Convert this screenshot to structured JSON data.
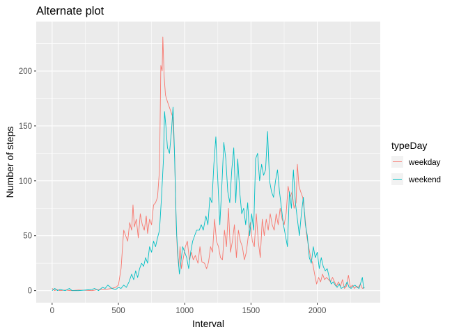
{
  "chart_data": {
    "type": "line",
    "title": "Alternate plot",
    "xlabel": "Interval",
    "ylabel": "Number of steps",
    "xlim": [
      -120,
      2475
    ],
    "ylim": [
      -11,
      245
    ],
    "x_ticks": [
      0,
      500,
      1000,
      1500,
      2000
    ],
    "x_tick_labels": [
      "0",
      "500",
      "1000",
      "1500",
      "2000"
    ],
    "y_ticks": [
      0,
      50,
      100,
      150,
      200
    ],
    "y_tick_labels": [
      "0",
      "50",
      "100",
      "150",
      "200"
    ],
    "grid": true,
    "legend": {
      "title": "typeDay",
      "position": "right"
    },
    "series": [
      {
        "name": "weekday",
        "color": "#F8766D",
        "points": [
          [
            0,
            2
          ],
          [
            20,
            0
          ],
          [
            35,
            1
          ],
          [
            60,
            0
          ],
          [
            100,
            0.5
          ],
          [
            140,
            0
          ],
          [
            200,
            0.5
          ],
          [
            300,
            0
          ],
          [
            350,
            1
          ],
          [
            400,
            1
          ],
          [
            450,
            2
          ],
          [
            480,
            3
          ],
          [
            500,
            5
          ],
          [
            520,
            20
          ],
          [
            540,
            55
          ],
          [
            555,
            50
          ],
          [
            570,
            45
          ],
          [
            585,
            62
          ],
          [
            600,
            55
          ],
          [
            610,
            78
          ],
          [
            620,
            58
          ],
          [
            635,
            65
          ],
          [
            650,
            48
          ],
          [
            665,
            70
          ],
          [
            680,
            60
          ],
          [
            695,
            55
          ],
          [
            710,
            68
          ],
          [
            720,
            52
          ],
          [
            735,
            65
          ],
          [
            750,
            60
          ],
          [
            765,
            78
          ],
          [
            780,
            80
          ],
          [
            795,
            85
          ],
          [
            810,
            110
          ],
          [
            820,
            205
          ],
          [
            830,
            200
          ],
          [
            835,
            231
          ],
          [
            845,
            195
          ],
          [
            855,
            178
          ],
          [
            870,
            172
          ],
          [
            890,
            165
          ],
          [
            910,
            158
          ],
          [
            925,
            120
          ],
          [
            935,
            62
          ],
          [
            945,
            35
          ],
          [
            955,
            22
          ],
          [
            965,
            40
          ],
          [
            975,
            20
          ],
          [
            990,
            30
          ],
          [
            1005,
            40
          ],
          [
            1020,
            45
          ],
          [
            1035,
            28
          ],
          [
            1050,
            35
          ],
          [
            1065,
            28
          ],
          [
            1080,
            32
          ],
          [
            1100,
            25
          ],
          [
            1115,
            40
          ],
          [
            1130,
            26
          ],
          [
            1150,
            25
          ],
          [
            1165,
            20
          ],
          [
            1180,
            26
          ],
          [
            1195,
            40
          ],
          [
            1210,
            35
          ],
          [
            1225,
            65
          ],
          [
            1240,
            45
          ],
          [
            1255,
            40
          ],
          [
            1270,
            30
          ],
          [
            1285,
            28
          ],
          [
            1300,
            55
          ],
          [
            1315,
            40
          ],
          [
            1330,
            75
          ],
          [
            1345,
            35
          ],
          [
            1360,
            45
          ],
          [
            1375,
            60
          ],
          [
            1390,
            30
          ],
          [
            1405,
            55
          ],
          [
            1420,
            45
          ],
          [
            1435,
            40
          ],
          [
            1450,
            28
          ],
          [
            1465,
            35
          ],
          [
            1480,
            50
          ],
          [
            1495,
            62
          ],
          [
            1510,
            45
          ],
          [
            1525,
            40
          ],
          [
            1540,
            70
          ],
          [
            1555,
            45
          ],
          [
            1570,
            30
          ],
          [
            1585,
            65
          ],
          [
            1600,
            50
          ],
          [
            1615,
            65
          ],
          [
            1630,
            55
          ],
          [
            1645,
            70
          ],
          [
            1660,
            60
          ],
          [
            1675,
            55
          ],
          [
            1690,
            70
          ],
          [
            1705,
            60
          ],
          [
            1720,
            75
          ],
          [
            1735,
            65
          ],
          [
            1750,
            60
          ],
          [
            1765,
            70
          ],
          [
            1780,
            95
          ],
          [
            1795,
            85
          ],
          [
            1810,
            90
          ],
          [
            1825,
            75
          ],
          [
            1840,
            80
          ],
          [
            1850,
            115
          ],
          [
            1862,
            95
          ],
          [
            1875,
            90
          ],
          [
            1890,
            85
          ],
          [
            1905,
            70
          ],
          [
            1920,
            50
          ],
          [
            1935,
            40
          ],
          [
            1950,
            30
          ],
          [
            1965,
            25
          ],
          [
            1980,
            15
          ],
          [
            1995,
            6
          ],
          [
            2010,
            12
          ],
          [
            2025,
            8
          ],
          [
            2040,
            15
          ],
          [
            2055,
            10
          ],
          [
            2070,
            12
          ],
          [
            2085,
            10
          ],
          [
            2100,
            8
          ],
          [
            2115,
            12
          ],
          [
            2130,
            8
          ],
          [
            2145,
            4
          ],
          [
            2160,
            8
          ],
          [
            2175,
            4
          ],
          [
            2190,
            10
          ],
          [
            2205,
            2
          ],
          [
            2220,
            4
          ],
          [
            2235,
            14
          ],
          [
            2250,
            3
          ],
          [
            2265,
            5
          ],
          [
            2280,
            2
          ],
          [
            2295,
            4
          ],
          [
            2310,
            3
          ],
          [
            2325,
            6
          ],
          [
            2340,
            2
          ],
          [
            2355,
            3
          ]
        ]
      },
      {
        "name": "weekend",
        "color": "#00BFC4",
        "points": [
          [
            0,
            0
          ],
          [
            20,
            2
          ],
          [
            40,
            0
          ],
          [
            60,
            1
          ],
          [
            100,
            0
          ],
          [
            130,
            2
          ],
          [
            150,
            0
          ],
          [
            200,
            0
          ],
          [
            300,
            1
          ],
          [
            320,
            2
          ],
          [
            350,
            0
          ],
          [
            380,
            3
          ],
          [
            400,
            2
          ],
          [
            420,
            5
          ],
          [
            450,
            2
          ],
          [
            480,
            1
          ],
          [
            500,
            3
          ],
          [
            520,
            2
          ],
          [
            540,
            5
          ],
          [
            560,
            3
          ],
          [
            580,
            8
          ],
          [
            600,
            15
          ],
          [
            615,
            10
          ],
          [
            630,
            18
          ],
          [
            645,
            12
          ],
          [
            660,
            20
          ],
          [
            675,
            25
          ],
          [
            690,
            22
          ],
          [
            705,
            30
          ],
          [
            720,
            25
          ],
          [
            735,
            40
          ],
          [
            750,
            35
          ],
          [
            765,
            45
          ],
          [
            780,
            40
          ],
          [
            795,
            48
          ],
          [
            810,
            55
          ],
          [
            825,
            85
          ],
          [
            840,
            120
          ],
          [
            848,
            163
          ],
          [
            858,
            150
          ],
          [
            870,
            130
          ],
          [
            885,
            125
          ],
          [
            900,
            145
          ],
          [
            912,
            167
          ],
          [
            922,
            130
          ],
          [
            932,
            80
          ],
          [
            940,
            50
          ],
          [
            950,
            30
          ],
          [
            960,
            15
          ],
          [
            970,
            25
          ],
          [
            985,
            40
          ],
          [
            1000,
            35
          ],
          [
            1015,
            30
          ],
          [
            1030,
            20
          ],
          [
            1045,
            35
          ],
          [
            1060,
            45
          ],
          [
            1075,
            50
          ],
          [
            1090,
            55
          ],
          [
            1110,
            55
          ],
          [
            1125,
            60
          ],
          [
            1140,
            55
          ],
          [
            1160,
            68
          ],
          [
            1175,
            60
          ],
          [
            1190,
            85
          ],
          [
            1205,
            80
          ],
          [
            1220,
            115
          ],
          [
            1235,
            140
          ],
          [
            1250,
            100
          ],
          [
            1265,
            60
          ],
          [
            1280,
            95
          ],
          [
            1295,
            135
          ],
          [
            1310,
            120
          ],
          [
            1325,
            90
          ],
          [
            1340,
            80
          ],
          [
            1355,
            110
          ],
          [
            1370,
            130
          ],
          [
            1385,
            80
          ],
          [
            1400,
            120
          ],
          [
            1415,
            90
          ],
          [
            1430,
            70
          ],
          [
            1445,
            75
          ],
          [
            1460,
            60
          ],
          [
            1475,
            80
          ],
          [
            1490,
            50
          ],
          [
            1505,
            70
          ],
          [
            1520,
            55
          ],
          [
            1535,
            120
          ],
          [
            1550,
            125
          ],
          [
            1565,
            100
          ],
          [
            1580,
            115
          ],
          [
            1595,
            105
          ],
          [
            1610,
            110
          ],
          [
            1625,
            145
          ],
          [
            1640,
            100
          ],
          [
            1655,
            90
          ],
          [
            1670,
            85
          ],
          [
            1685,
            100
          ],
          [
            1700,
            110
          ],
          [
            1715,
            90
          ],
          [
            1730,
            75
          ],
          [
            1745,
            60
          ],
          [
            1760,
            50
          ],
          [
            1775,
            40
          ],
          [
            1790,
            90
          ],
          [
            1805,
            75
          ],
          [
            1820,
            110
          ],
          [
            1835,
            80
          ],
          [
            1850,
            65
          ],
          [
            1865,
            50
          ],
          [
            1880,
            70
          ],
          [
            1895,
            85
          ],
          [
            1910,
            60
          ],
          [
            1925,
            50
          ],
          [
            1940,
            30
          ],
          [
            1955,
            25
          ],
          [
            1970,
            40
          ],
          [
            1985,
            30
          ],
          [
            2000,
            35
          ],
          [
            2015,
            20
          ],
          [
            2030,
            30
          ],
          [
            2045,
            22
          ],
          [
            2060,
            18
          ],
          [
            2075,
            20
          ],
          [
            2090,
            12
          ],
          [
            2105,
            6
          ],
          [
            2120,
            8
          ],
          [
            2135,
            5
          ],
          [
            2150,
            3
          ],
          [
            2165,
            6
          ],
          [
            2180,
            2
          ],
          [
            2195,
            3
          ],
          [
            2210,
            4
          ],
          [
            2225,
            8
          ],
          [
            2240,
            3
          ],
          [
            2255,
            2
          ],
          [
            2270,
            4
          ],
          [
            2285,
            5
          ],
          [
            2300,
            3
          ],
          [
            2315,
            2
          ],
          [
            2330,
            8
          ],
          [
            2340,
            12
          ],
          [
            2350,
            2
          ],
          [
            2355,
            3
          ]
        ]
      }
    ]
  }
}
